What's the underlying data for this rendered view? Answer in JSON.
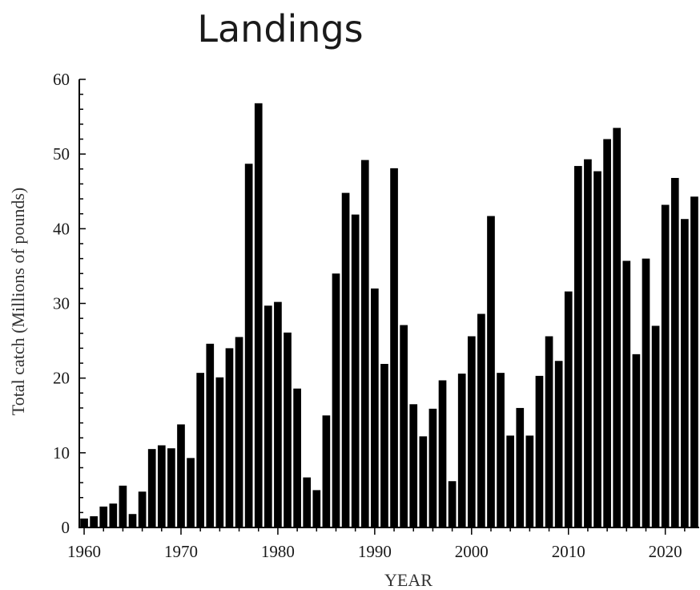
{
  "chart_data": {
    "type": "bar",
    "title": "Landings",
    "xlabel": "YEAR",
    "ylabel": "Total catch (Millions of pounds)",
    "ylim": [
      0,
      60
    ],
    "xlim": [
      1959.5,
      2023.5
    ],
    "y_ticks": [
      "0",
      "10",
      "20",
      "30",
      "40",
      "50",
      "60"
    ],
    "x_ticks": [
      "1960",
      "1970",
      "1980",
      "1990",
      "2000",
      "2010",
      "2020"
    ],
    "grid": false,
    "legend": "none",
    "bar_color": "#000000",
    "series": [
      {
        "x": [
          1960,
          1961,
          1962,
          1963,
          1964,
          1965,
          1966,
          1967,
          1968,
          1969,
          1970,
          1971,
          1972,
          1973,
          1974,
          1975,
          1976,
          1977,
          1978,
          1979,
          1980,
          1981,
          1982,
          1983,
          1984,
          1985,
          1986,
          1987,
          1988,
          1989,
          1990,
          1991,
          1992,
          1993,
          1994,
          1995,
          1996,
          1997,
          1998,
          1999,
          2000,
          2001,
          2002,
          2003,
          2004,
          2005,
          2006,
          2007,
          2008,
          2009,
          2010,
          2011,
          2012,
          2013,
          2014,
          2015,
          2016,
          2017,
          2018,
          2019,
          2020,
          2021,
          2022,
          2023
        ],
        "values": [
          1.2,
          1.5,
          2.8,
          3.2,
          5.6,
          1.8,
          4.8,
          10.5,
          11.0,
          10.6,
          13.8,
          9.3,
          20.7,
          24.6,
          20.1,
          24.0,
          25.5,
          48.7,
          56.8,
          29.7,
          30.2,
          26.1,
          18.6,
          6.7,
          5.0,
          15.0,
          34.0,
          44.8,
          41.9,
          49.2,
          32.0,
          21.9,
          48.1,
          27.1,
          16.5,
          12.2,
          15.9,
          19.7,
          6.2,
          20.6,
          25.6,
          28.6,
          41.7,
          20.7,
          12.3,
          16.0,
          12.3,
          20.3,
          25.6,
          22.3,
          31.6,
          48.4,
          49.3,
          47.7,
          52.0,
          53.5,
          35.7,
          23.2,
          36.0,
          27.0,
          43.2,
          46.8,
          41.3,
          44.3
        ]
      }
    ]
  }
}
